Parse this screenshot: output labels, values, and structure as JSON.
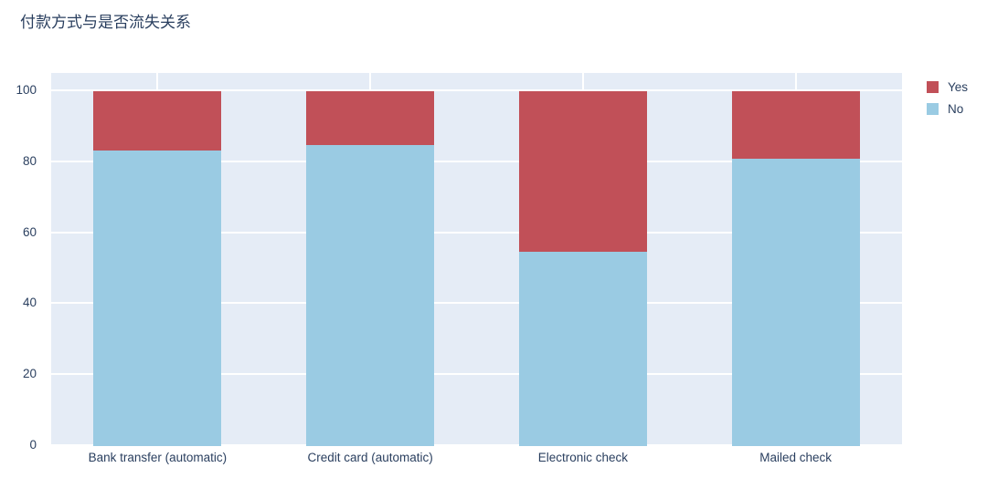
{
  "title": "付款方式与是否流失关系",
  "colors": {
    "yes": "#c15058",
    "no": "#9acbe3",
    "plot_background": "#e5ecf6",
    "gridline": "#ffffff",
    "text": "#2a3f5f"
  },
  "legend": {
    "items": [
      {
        "label": "Yes",
        "color": "#c15058"
      },
      {
        "label": "No",
        "color": "#9acbe3"
      }
    ]
  },
  "chart_data": {
    "type": "bar",
    "stacked": true,
    "title": "付款方式与是否流失关系",
    "categories": [
      "Bank transfer (automatic)",
      "Credit card (automatic)",
      "Electronic check",
      "Mailed check"
    ],
    "series": [
      {
        "name": "No",
        "color": "#9acbe3",
        "values": [
          83.3,
          84.8,
          54.7,
          80.9
        ]
      },
      {
        "name": "Yes",
        "color": "#c15058",
        "values": [
          16.7,
          15.2,
          45.3,
          19.1
        ]
      }
    ],
    "xlabel": "",
    "ylabel": "",
    "yticks": [
      0,
      20,
      40,
      60,
      80,
      100
    ],
    "ylim": [
      0,
      100
    ],
    "grid": true,
    "legend_position": "top-right"
  }
}
